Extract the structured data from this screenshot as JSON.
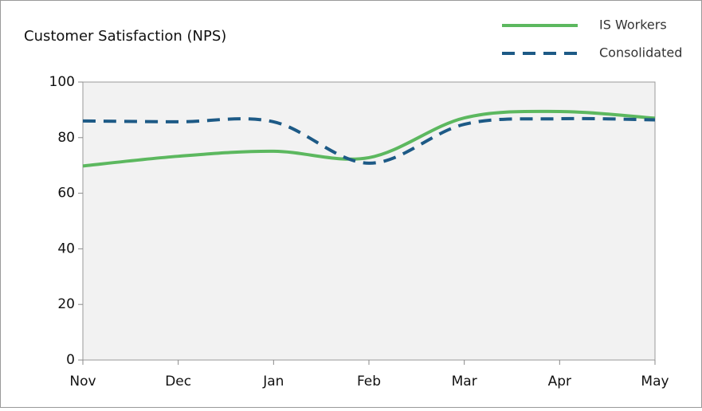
{
  "chart_data": {
    "type": "line",
    "title": "Customer Satisfaction (NPS)",
    "categories": [
      "Nov",
      "Dec",
      "Jan",
      "Feb",
      "Mar",
      "Apr",
      "May"
    ],
    "series": [
      {
        "name": "IS Workers",
        "color": "#5cb85f",
        "dashed": false,
        "values": [
          69.8,
          73.3,
          75.1,
          72.8,
          87.1,
          89.4,
          87
        ]
      },
      {
        "name": "Consolidated",
        "color": "#1d5a86",
        "dashed": true,
        "values": [
          86,
          85.7,
          85.7,
          70.8,
          84.8,
          86.8,
          86.4
        ]
      }
    ],
    "ylim": [
      0,
      100
    ],
    "yticks": [
      0,
      20,
      40,
      60,
      80,
      100
    ],
    "grid": false,
    "smooth": true,
    "legend": "top-right"
  }
}
